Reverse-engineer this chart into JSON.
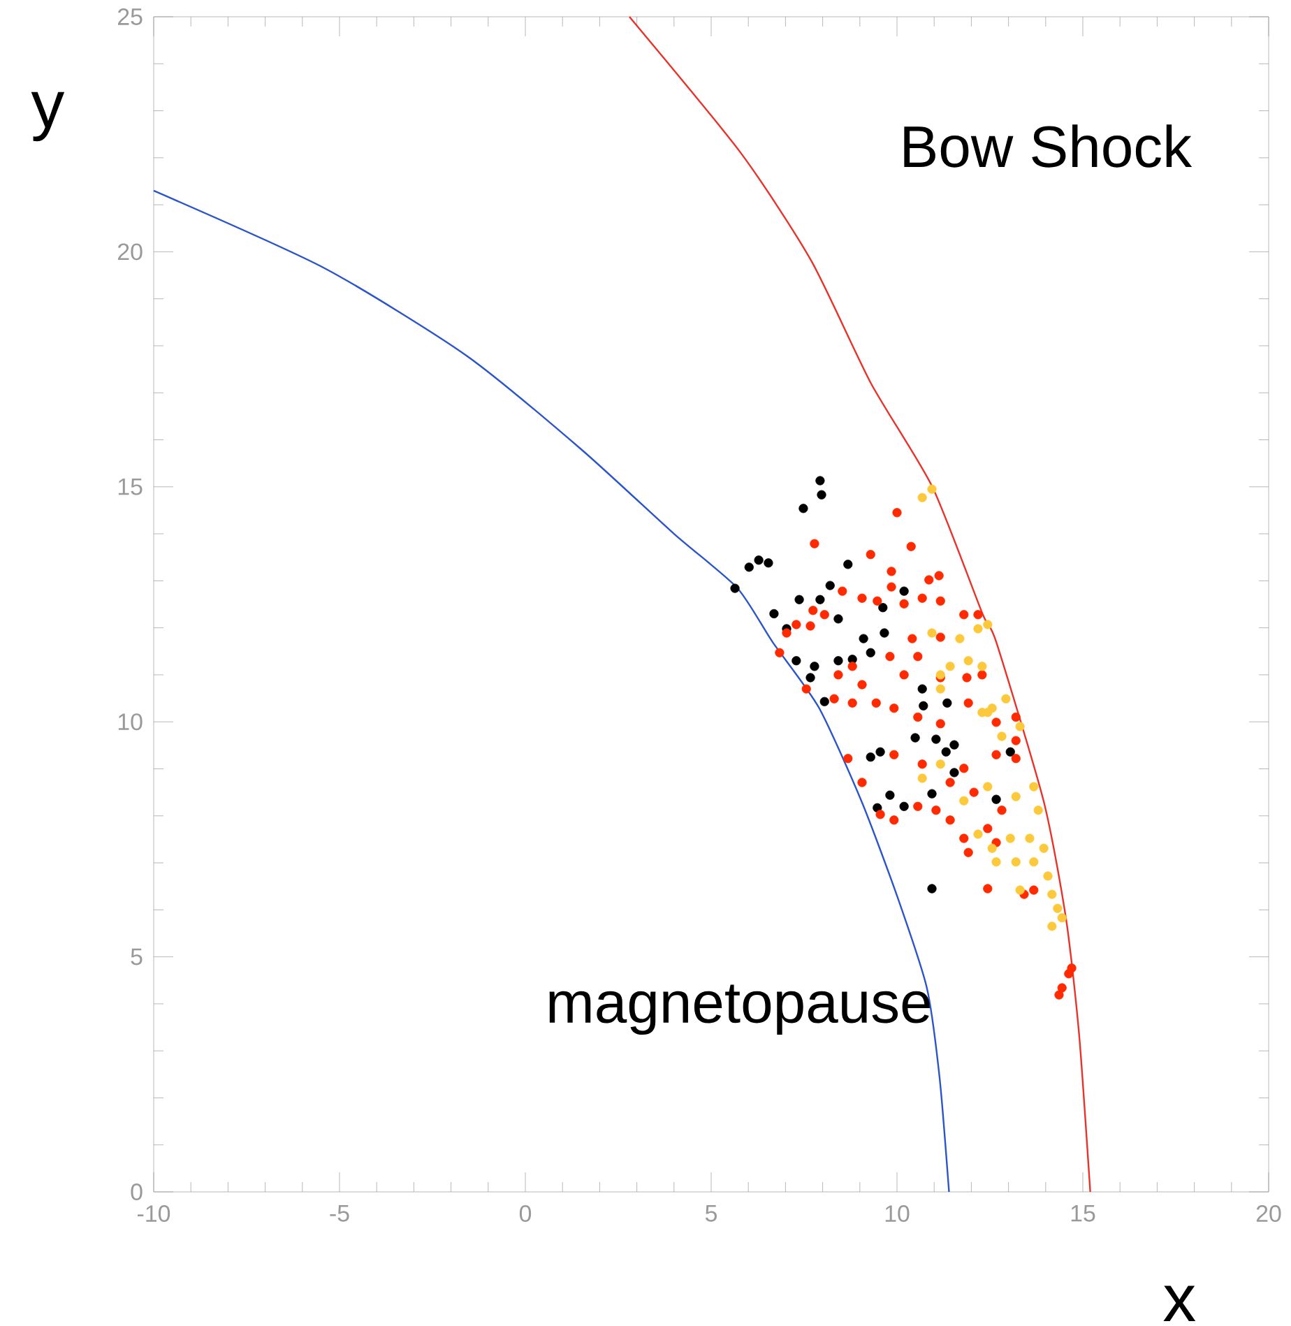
{
  "chart_data": {
    "type": "scatter",
    "xlabel": "x",
    "ylabel": "y",
    "xlim": [
      -10,
      20
    ],
    "ylim": [
      0,
      25
    ],
    "xticks": [
      -10,
      -5,
      0,
      5,
      10,
      15,
      20
    ],
    "yticks": [
      0,
      5,
      10,
      15,
      20,
      25
    ],
    "grid": false,
    "legend": false,
    "series": [
      {
        "name": "magnetopause",
        "type": "line",
        "marker": "none",
        "color": "#2b55c8",
        "x": [
          -10,
          -5.4,
          -1.6,
          1.5,
          4.0,
          5.7,
          6.65,
          7.9,
          9.05,
          10.0,
          10.8,
          11.15,
          11.4
        ],
        "values": [
          21.3,
          19.65,
          17.8,
          15.8,
          14.0,
          12.85,
          11.7,
          10.3,
          8.3,
          6.3,
          4.35,
          2.4,
          0
        ]
      },
      {
        "name": "Bow Shock",
        "type": "line",
        "marker": "none",
        "color": "#e8322a",
        "x": [
          2.8,
          5.8,
          7.7,
          9.3,
          10.95,
          12.3,
          12.67,
          13.95,
          14.55,
          14.9,
          15.2
        ],
        "values": [
          25.0,
          22.1,
          19.8,
          17.2,
          15.0,
          12.3,
          11.7,
          8.3,
          5.8,
          3.35,
          0
        ]
      },
      {
        "marker": "circle",
        "color": "#000000",
        "x": [
          7.93,
          7.97,
          7.48,
          6.02,
          6.28,
          6.54,
          5.64,
          8.68,
          8.2,
          7.37,
          7.93,
          6.69,
          7.03,
          8.42,
          9.62,
          10.19,
          9.1,
          9.66,
          9.29,
          7.29,
          7.78,
          7.67,
          8.42,
          10.68,
          10.71,
          11.35,
          8.05,
          8.8,
          10.49,
          11.05,
          11.54,
          11.32,
          9.29,
          9.55,
          9.81,
          10.19,
          10.94,
          12.67,
          9.47,
          13.05,
          10.94,
          11.54
        ],
        "values": [
          15.13,
          14.83,
          14.54,
          13.29,
          13.44,
          13.38,
          12.84,
          13.35,
          12.9,
          12.6,
          12.6,
          12.3,
          11.98,
          12.19,
          12.43,
          12.78,
          11.77,
          11.89,
          11.47,
          11.3,
          11.18,
          10.94,
          11.3,
          10.7,
          10.34,
          10.4,
          10.43,
          11.33,
          9.66,
          9.63,
          9.51,
          9.36,
          9.25,
          9.36,
          8.44,
          8.2,
          8.47,
          8.35,
          8.17,
          9.36,
          6.45,
          8.92
        ]
      },
      {
        "marker": "circle",
        "color": "#ff2a00",
        "x": [
          10.0,
          7.78,
          10.38,
          9.29,
          9.85,
          11.13,
          10.86,
          9.85,
          8.53,
          9.06,
          7.74,
          7.29,
          7.03,
          6.84,
          7.67,
          8.05,
          9.47,
          10.19,
          10.68,
          11.17,
          11.8,
          12.18,
          10.41,
          11.17,
          10.56,
          9.81,
          8.8,
          8.42,
          9.06,
          7.56,
          8.31,
          8.8,
          9.44,
          10.19,
          11.17,
          11.88,
          11.92,
          12.29,
          12.67,
          13.2,
          9.92,
          10.56,
          11.17,
          8.68,
          9.06,
          9.55,
          9.92,
          10.56,
          11.05,
          9.92,
          10.68,
          11.43,
          11.8,
          12.07,
          11.43,
          11.8,
          11.92,
          12.44,
          12.82,
          12.67,
          12.44,
          13.68,
          13.42,
          13.2,
          12.67,
          14.44,
          14.62,
          14.7,
          14.36,
          13.2
        ],
        "values": [
          14.45,
          13.79,
          13.73,
          13.56,
          13.2,
          13.11,
          13.02,
          12.87,
          12.78,
          12.63,
          12.37,
          12.07,
          11.89,
          11.47,
          12.04,
          12.28,
          12.57,
          12.51,
          12.63,
          12.57,
          12.28,
          12.28,
          11.77,
          11.8,
          11.39,
          11.39,
          11.18,
          11.0,
          10.79,
          10.7,
          10.49,
          10.4,
          10.4,
          11.0,
          10.94,
          10.94,
          10.4,
          11.0,
          9.99,
          10.1,
          10.29,
          10.1,
          9.96,
          9.22,
          8.71,
          8.03,
          7.91,
          8.2,
          8.12,
          9.3,
          9.1,
          8.71,
          9.01,
          8.5,
          7.91,
          7.52,
          7.22,
          7.73,
          8.12,
          7.43,
          6.45,
          6.42,
          6.33,
          9.6,
          9.3,
          4.34,
          4.64,
          4.76,
          4.19,
          9.22
        ]
      },
      {
        "marker": "circle",
        "color": "#fcc93c",
        "x": [
          10.68,
          10.94,
          10.94,
          11.69,
          12.18,
          12.44,
          11.17,
          11.43,
          11.92,
          12.29,
          11.17,
          12.29,
          12.56,
          12.93,
          12.44,
          12.82,
          13.31,
          11.17,
          10.68,
          12.44,
          13.2,
          13.68,
          13.8,
          11.8,
          12.18,
          12.56,
          13.05,
          13.57,
          13.95,
          13.2,
          13.68,
          14.06,
          13.31,
          14.17,
          14.32,
          14.17,
          14.44,
          12.67
        ],
        "values": [
          14.77,
          14.95,
          11.89,
          11.77,
          11.98,
          12.07,
          11.0,
          11.18,
          11.3,
          11.18,
          10.7,
          10.2,
          10.29,
          10.49,
          10.2,
          9.69,
          9.9,
          9.1,
          8.8,
          8.62,
          8.41,
          8.62,
          8.12,
          8.32,
          7.61,
          7.31,
          7.52,
          7.52,
          7.31,
          7.02,
          7.02,
          6.72,
          6.42,
          6.33,
          6.03,
          5.65,
          5.83,
          7.02
        ]
      }
    ]
  }
}
